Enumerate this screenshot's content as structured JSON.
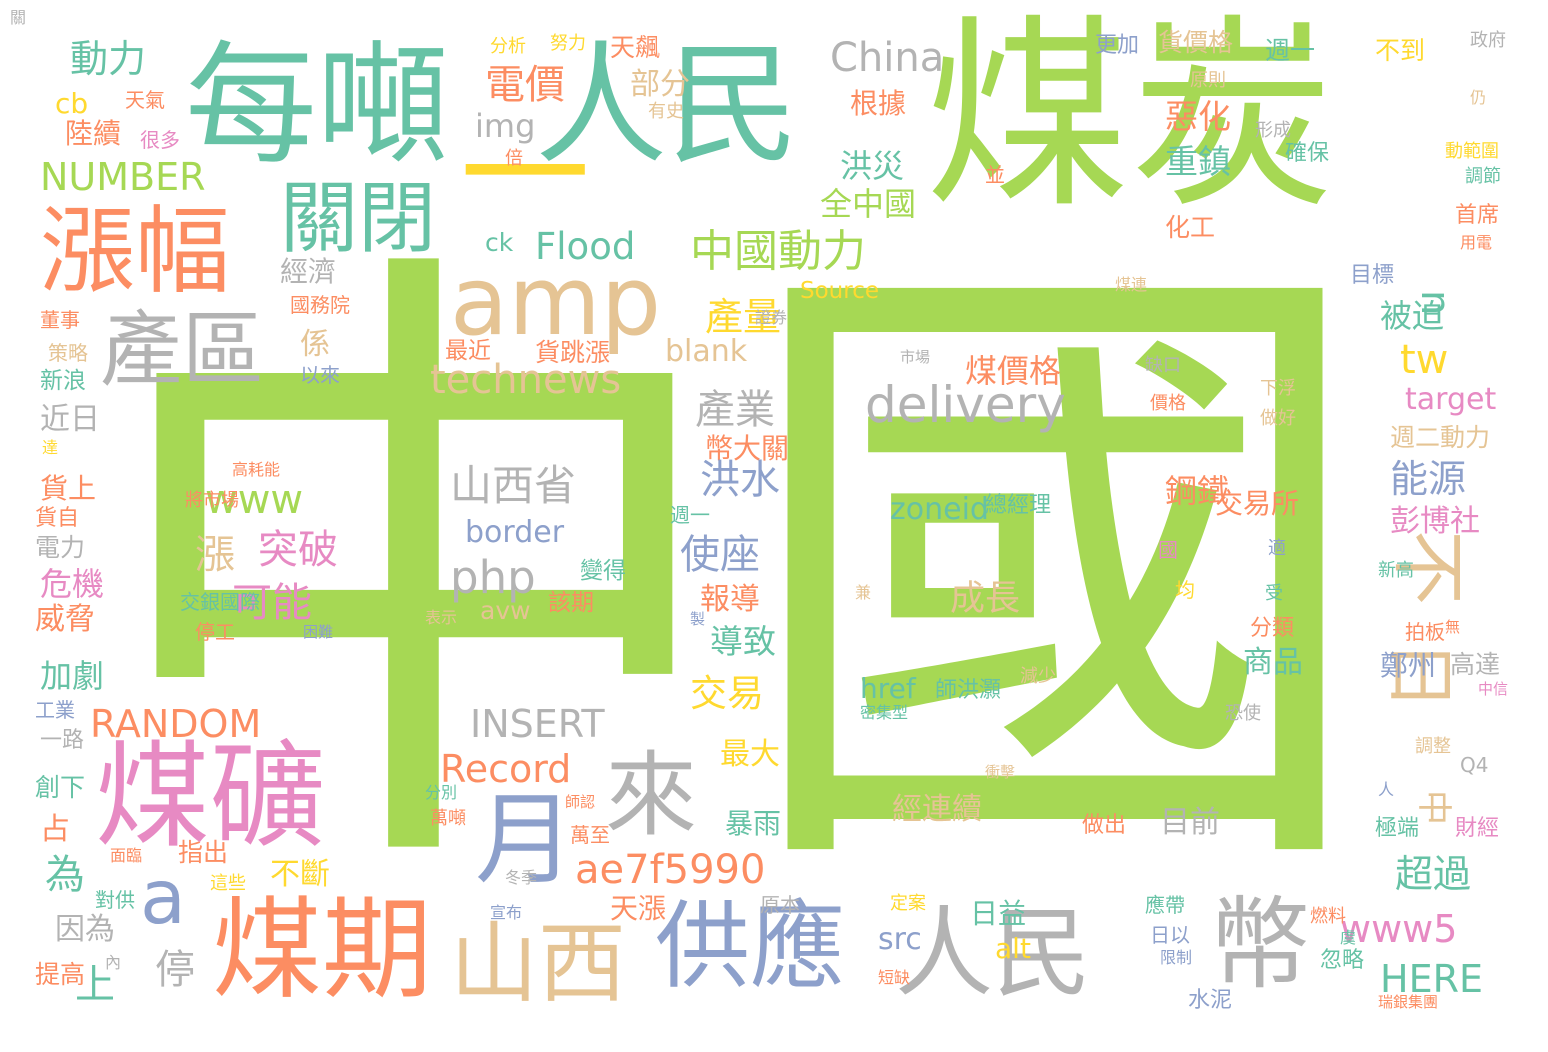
{
  "palette": {
    "green": "#a6d854",
    "teal": "#66c2a5",
    "orange": "#fc8d62",
    "blue": "#8da0cb",
    "pink": "#e78ac3",
    "yellow": "#ffd92f",
    "tan": "#e5c494",
    "gray": "#b3b3b3"
  },
  "words": [
    {
      "text": "中國",
      "color": "green"
    },
    {
      "text": "煤炭",
      "color": "green"
    },
    {
      "text": "人民",
      "color": "teal"
    },
    {
      "text": "每噸",
      "color": "teal"
    },
    {
      "text": "一",
      "color": "yellow"
    },
    {
      "text": "漲幅",
      "color": "orange"
    },
    {
      "text": "關閉",
      "color": "teal"
    },
    {
      "text": "amp",
      "color": "tan"
    },
    {
      "text": "產區",
      "color": "gray"
    },
    {
      "text": "煤礦",
      "color": "pink"
    },
    {
      "text": "煤期",
      "color": "orange"
    },
    {
      "text": "山西",
      "color": "tan"
    },
    {
      "text": "供應",
      "color": "blue"
    },
    {
      "text": "人民",
      "color": "gray"
    },
    {
      "text": "幣",
      "color": "gray"
    },
    {
      "text": "月",
      "color": "blue"
    },
    {
      "text": "來",
      "color": "gray"
    },
    {
      "text": "a",
      "color": "blue"
    },
    {
      "text": "不",
      "color": "tan"
    },
    {
      "text": "日",
      "color": "tan"
    },
    {
      "text": "China",
      "color": "gray"
    },
    {
      "text": "動力",
      "color": "teal"
    },
    {
      "text": "cb",
      "color": "yellow"
    },
    {
      "text": "NUMBER",
      "color": "green"
    },
    {
      "text": "陸續",
      "color": "orange"
    },
    {
      "text": "天氣",
      "color": "orange"
    },
    {
      "text": "很多",
      "color": "pink"
    },
    {
      "text": "電價",
      "color": "orange"
    },
    {
      "text": "部分",
      "color": "tan"
    },
    {
      "text": "有史",
      "color": "tan"
    },
    {
      "text": "img",
      "color": "gray"
    },
    {
      "text": "分析",
      "color": "yellow"
    },
    {
      "text": "努力",
      "color": "yellow"
    },
    {
      "text": "天飆",
      "color": "orange"
    },
    {
      "text": "根據",
      "color": "orange"
    },
    {
      "text": "惡化",
      "color": "orange"
    },
    {
      "text": "重鎮",
      "color": "teal"
    },
    {
      "text": "洪災",
      "color": "teal"
    },
    {
      "text": "全中國",
      "color": "green"
    },
    {
      "text": "中國動力",
      "color": "green"
    },
    {
      "text": "Flood",
      "color": "teal"
    },
    {
      "text": "ck",
      "color": "teal"
    },
    {
      "text": "經濟",
      "color": "gray"
    },
    {
      "text": "產量",
      "color": "yellow"
    },
    {
      "text": "Source",
      "color": "yellow"
    },
    {
      "text": "technews",
      "color": "tan"
    },
    {
      "text": "blank",
      "color": "tan"
    },
    {
      "text": "貨跳漲",
      "color": "orange"
    },
    {
      "text": "最近",
      "color": "orange"
    },
    {
      "text": "係",
      "color": "tan"
    },
    {
      "text": "以來",
      "color": "blue"
    },
    {
      "text": "國務院",
      "color": "orange"
    },
    {
      "text": "n",
      "color": "teal"
    },
    {
      "text": "tw",
      "color": "yellow"
    },
    {
      "text": "被迫",
      "color": "teal"
    },
    {
      "text": "delivery",
      "color": "gray"
    },
    {
      "text": "煤價格",
      "color": "orange"
    },
    {
      "text": "產業",
      "color": "gray"
    },
    {
      "text": "幣大關",
      "color": "orange"
    },
    {
      "text": "洪水",
      "color": "blue"
    },
    {
      "text": "www",
      "color": "green"
    },
    {
      "text": "山西省",
      "color": "gray"
    },
    {
      "text": "border",
      "color": "blue"
    },
    {
      "text": "漲",
      "color": "tan"
    },
    {
      "text": "突破",
      "color": "pink"
    },
    {
      "text": "可能",
      "color": "pink"
    },
    {
      "text": "php",
      "color": "gray"
    },
    {
      "text": "使座",
      "color": "blue"
    },
    {
      "text": "報導",
      "color": "orange"
    },
    {
      "text": "導致",
      "color": "teal"
    },
    {
      "text": "交易",
      "color": "yellow"
    },
    {
      "text": "變得",
      "color": "teal"
    },
    {
      "text": "該期",
      "color": "orange"
    },
    {
      "text": "avw",
      "color": "tan"
    },
    {
      "text": "zoneid",
      "color": "teal"
    },
    {
      "text": "總經理",
      "color": "teal"
    },
    {
      "text": "成長",
      "color": "tan"
    },
    {
      "text": "交易所",
      "color": "orange"
    },
    {
      "text": "彭博社",
      "color": "pink"
    },
    {
      "text": "能源",
      "color": "blue"
    },
    {
      "text": "target",
      "color": "pink"
    },
    {
      "text": "週二動力",
      "color": "tan"
    },
    {
      "text": "RANDOM",
      "color": "orange"
    },
    {
      "text": "INSERT",
      "color": "gray"
    },
    {
      "text": "Record",
      "color": "orange"
    },
    {
      "text": "ae7f5990",
      "color": "orange"
    },
    {
      "text": "href",
      "color": "teal"
    },
    {
      "text": "師洪灝",
      "color": "teal"
    },
    {
      "text": "經連續",
      "color": "tan"
    },
    {
      "text": "目前",
      "color": "gray"
    },
    {
      "text": "中",
      "color": "tan"
    },
    {
      "text": "超過",
      "color": "teal"
    },
    {
      "text": "www5",
      "color": "pink"
    },
    {
      "text": "HERE",
      "color": "teal"
    },
    {
      "text": "商品",
      "color": "teal"
    },
    {
      "text": "鄭州",
      "color": "blue"
    },
    {
      "text": "高達",
      "color": "gray"
    },
    {
      "text": "加劇",
      "color": "teal"
    },
    {
      "text": "危機",
      "color": "pink"
    },
    {
      "text": "威脅",
      "color": "orange"
    },
    {
      "text": "近日",
      "color": "gray"
    },
    {
      "text": "新浪",
      "color": "teal"
    },
    {
      "text": "策略",
      "color": "tan"
    },
    {
      "text": "董事",
      "color": "orange"
    },
    {
      "text": "為",
      "color": "teal"
    },
    {
      "text": "對供",
      "color": "teal"
    },
    {
      "text": "指出",
      "color": "orange"
    },
    {
      "text": "不斷",
      "color": "yellow"
    },
    {
      "text": "上",
      "color": "teal"
    },
    {
      "text": "停",
      "color": "gray"
    },
    {
      "text": "因為",
      "color": "gray"
    },
    {
      "text": "提高",
      "color": "orange"
    },
    {
      "text": "一路",
      "color": "gray"
    },
    {
      "text": "創下",
      "color": "teal"
    },
    {
      "text": "占",
      "color": "orange"
    },
    {
      "text": "最大",
      "color": "yellow"
    },
    {
      "text": "暴雨",
      "color": "teal"
    },
    {
      "text": "天漲",
      "color": "orange"
    },
    {
      "text": "日益",
      "color": "teal"
    },
    {
      "text": "src",
      "color": "blue"
    },
    {
      "text": "alt",
      "color": "yellow"
    },
    {
      "text": "日以",
      "color": "blue"
    },
    {
      "text": "應帶",
      "color": "teal"
    },
    {
      "text": "做出",
      "color": "orange"
    },
    {
      "text": "極端",
      "color": "teal"
    },
    {
      "text": "財經",
      "color": "pink"
    },
    {
      "text": "忽略",
      "color": "teal"
    },
    {
      "text": "瑞銀集團",
      "color": "orange"
    },
    {
      "text": "更加",
      "color": "blue"
    },
    {
      "text": "貨價格",
      "color": "tan"
    },
    {
      "text": "週一",
      "color": "teal"
    },
    {
      "text": "不到",
      "color": "yellow"
    },
    {
      "text": "政府",
      "color": "gray"
    },
    {
      "text": "原則",
      "color": "tan"
    },
    {
      "text": "形成",
      "color": "gray"
    },
    {
      "text": "確保",
      "color": "teal"
    },
    {
      "text": "動範圍",
      "color": "yellow"
    },
    {
      "text": "調節",
      "color": "teal"
    },
    {
      "text": "首席",
      "color": "orange"
    },
    {
      "text": "用電",
      "color": "orange"
    },
    {
      "text": "目標",
      "color": "blue"
    },
    {
      "text": "化工",
      "color": "orange"
    },
    {
      "text": "煤連",
      "color": "tan"
    },
    {
      "text": "缺口",
      "color": "gray"
    },
    {
      "text": "價格",
      "color": "orange"
    },
    {
      "text": "下浮",
      "color": "tan"
    },
    {
      "text": "做好",
      "color": "tan"
    },
    {
      "text": "週一",
      "color": "teal"
    },
    {
      "text": "交銀國際",
      "color": "teal"
    },
    {
      "text": "停工",
      "color": "orange"
    },
    {
      "text": "困難",
      "color": "blue"
    },
    {
      "text": "表示",
      "color": "tan"
    },
    {
      "text": "萬至",
      "color": "orange"
    },
    {
      "text": "冬季",
      "color": "gray"
    },
    {
      "text": "宣布",
      "color": "blue"
    },
    {
      "text": "這些",
      "color": "yellow"
    },
    {
      "text": "面臨",
      "color": "orange"
    },
    {
      "text": "萬噸",
      "color": "orange"
    },
    {
      "text": "分別",
      "color": "teal"
    },
    {
      "text": "師認",
      "color": "orange"
    },
    {
      "text": "工業",
      "color": "blue"
    },
    {
      "text": "電力",
      "color": "gray"
    },
    {
      "text": "貨自",
      "color": "orange"
    },
    {
      "text": "貨上",
      "color": "orange"
    },
    {
      "text": "達",
      "color": "yellow"
    },
    {
      "text": "高耗能",
      "color": "orange"
    },
    {
      "text": "將市場",
      "color": "orange"
    },
    {
      "text": "受",
      "color": "teal"
    },
    {
      "text": "分類",
      "color": "orange"
    },
    {
      "text": "新高",
      "color": "teal"
    },
    {
      "text": "拍板",
      "color": "orange"
    },
    {
      "text": "無",
      "color": "orange"
    },
    {
      "text": "減少",
      "color": "tan"
    },
    {
      "text": "調整",
      "color": "tan"
    },
    {
      "text": "中信",
      "color": "pink"
    },
    {
      "text": "Q4",
      "color": "gray"
    },
    {
      "text": "人",
      "color": "blue"
    },
    {
      "text": "燃料",
      "color": "orange"
    },
    {
      "text": "限制",
      "color": "blue"
    },
    {
      "text": "定案",
      "color": "yellow"
    },
    {
      "text": "衝擊",
      "color": "tan"
    },
    {
      "text": "水泥",
      "color": "blue"
    },
    {
      "text": "內",
      "color": "gray"
    },
    {
      "text": "原本",
      "color": "gray"
    },
    {
      "text": "仍",
      "color": "tan"
    },
    {
      "text": "並",
      "color": "orange"
    },
    {
      "text": "倍",
      "color": "orange"
    },
    {
      "text": "均",
      "color": "yellow"
    },
    {
      "text": "適",
      "color": "blue"
    },
    {
      "text": "兼",
      "color": "tan"
    },
    {
      "text": "製",
      "color": "blue"
    },
    {
      "text": "國",
      "color": "pink"
    },
    {
      "text": "證券",
      "color": "gray"
    },
    {
      "text": "市場",
      "color": "gray"
    },
    {
      "text": "密集型",
      "color": "teal"
    },
    {
      "text": "恐使",
      "color": "gray"
    },
    {
      "text": "虞",
      "color": "teal"
    },
    {
      "text": "短缺",
      "color": "orange"
    },
    {
      "text": "鋼鐵",
      "color": "orange"
    },
    {
      "text": "關",
      "color": "gray"
    }
  ]
}
